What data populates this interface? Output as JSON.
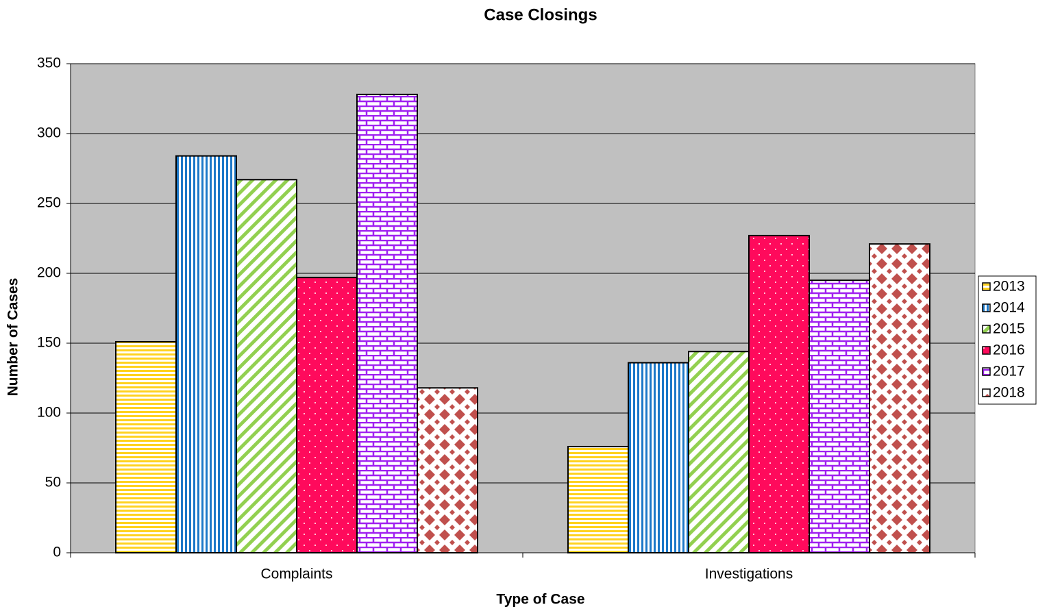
{
  "chart_data": {
    "type": "bar",
    "title": "Case Closings",
    "x_label": "Type of Case",
    "y_label": "Number of Cases",
    "categories": [
      "Complaints",
      "Investigations"
    ],
    "series": [
      {
        "name": "2013",
        "color": "#ffd21f",
        "pattern": "horizontal",
        "values": [
          151,
          76
        ]
      },
      {
        "name": "2014",
        "color": "#1c78c8",
        "pattern": "vertical",
        "values": [
          284,
          136
        ]
      },
      {
        "name": "2015",
        "color": "#92d050",
        "pattern": "diagonal",
        "values": [
          267,
          144
        ]
      },
      {
        "name": "2016",
        "color": "#ff0a5c",
        "pattern": "dots",
        "values": [
          197,
          227
        ]
      },
      {
        "name": "2017",
        "color": "#a020f0",
        "pattern": "brick",
        "values": [
          328,
          195
        ]
      },
      {
        "name": "2018",
        "color": "#c0504d",
        "pattern": "diamond",
        "values": [
          118,
          221
        ]
      }
    ],
    "ylim": [
      0,
      350
    ],
    "yticks": [
      0,
      50,
      100,
      150,
      200,
      250,
      300,
      350
    ],
    "grid": true,
    "legend": "right",
    "plot_background": "#c0c0c0"
  }
}
